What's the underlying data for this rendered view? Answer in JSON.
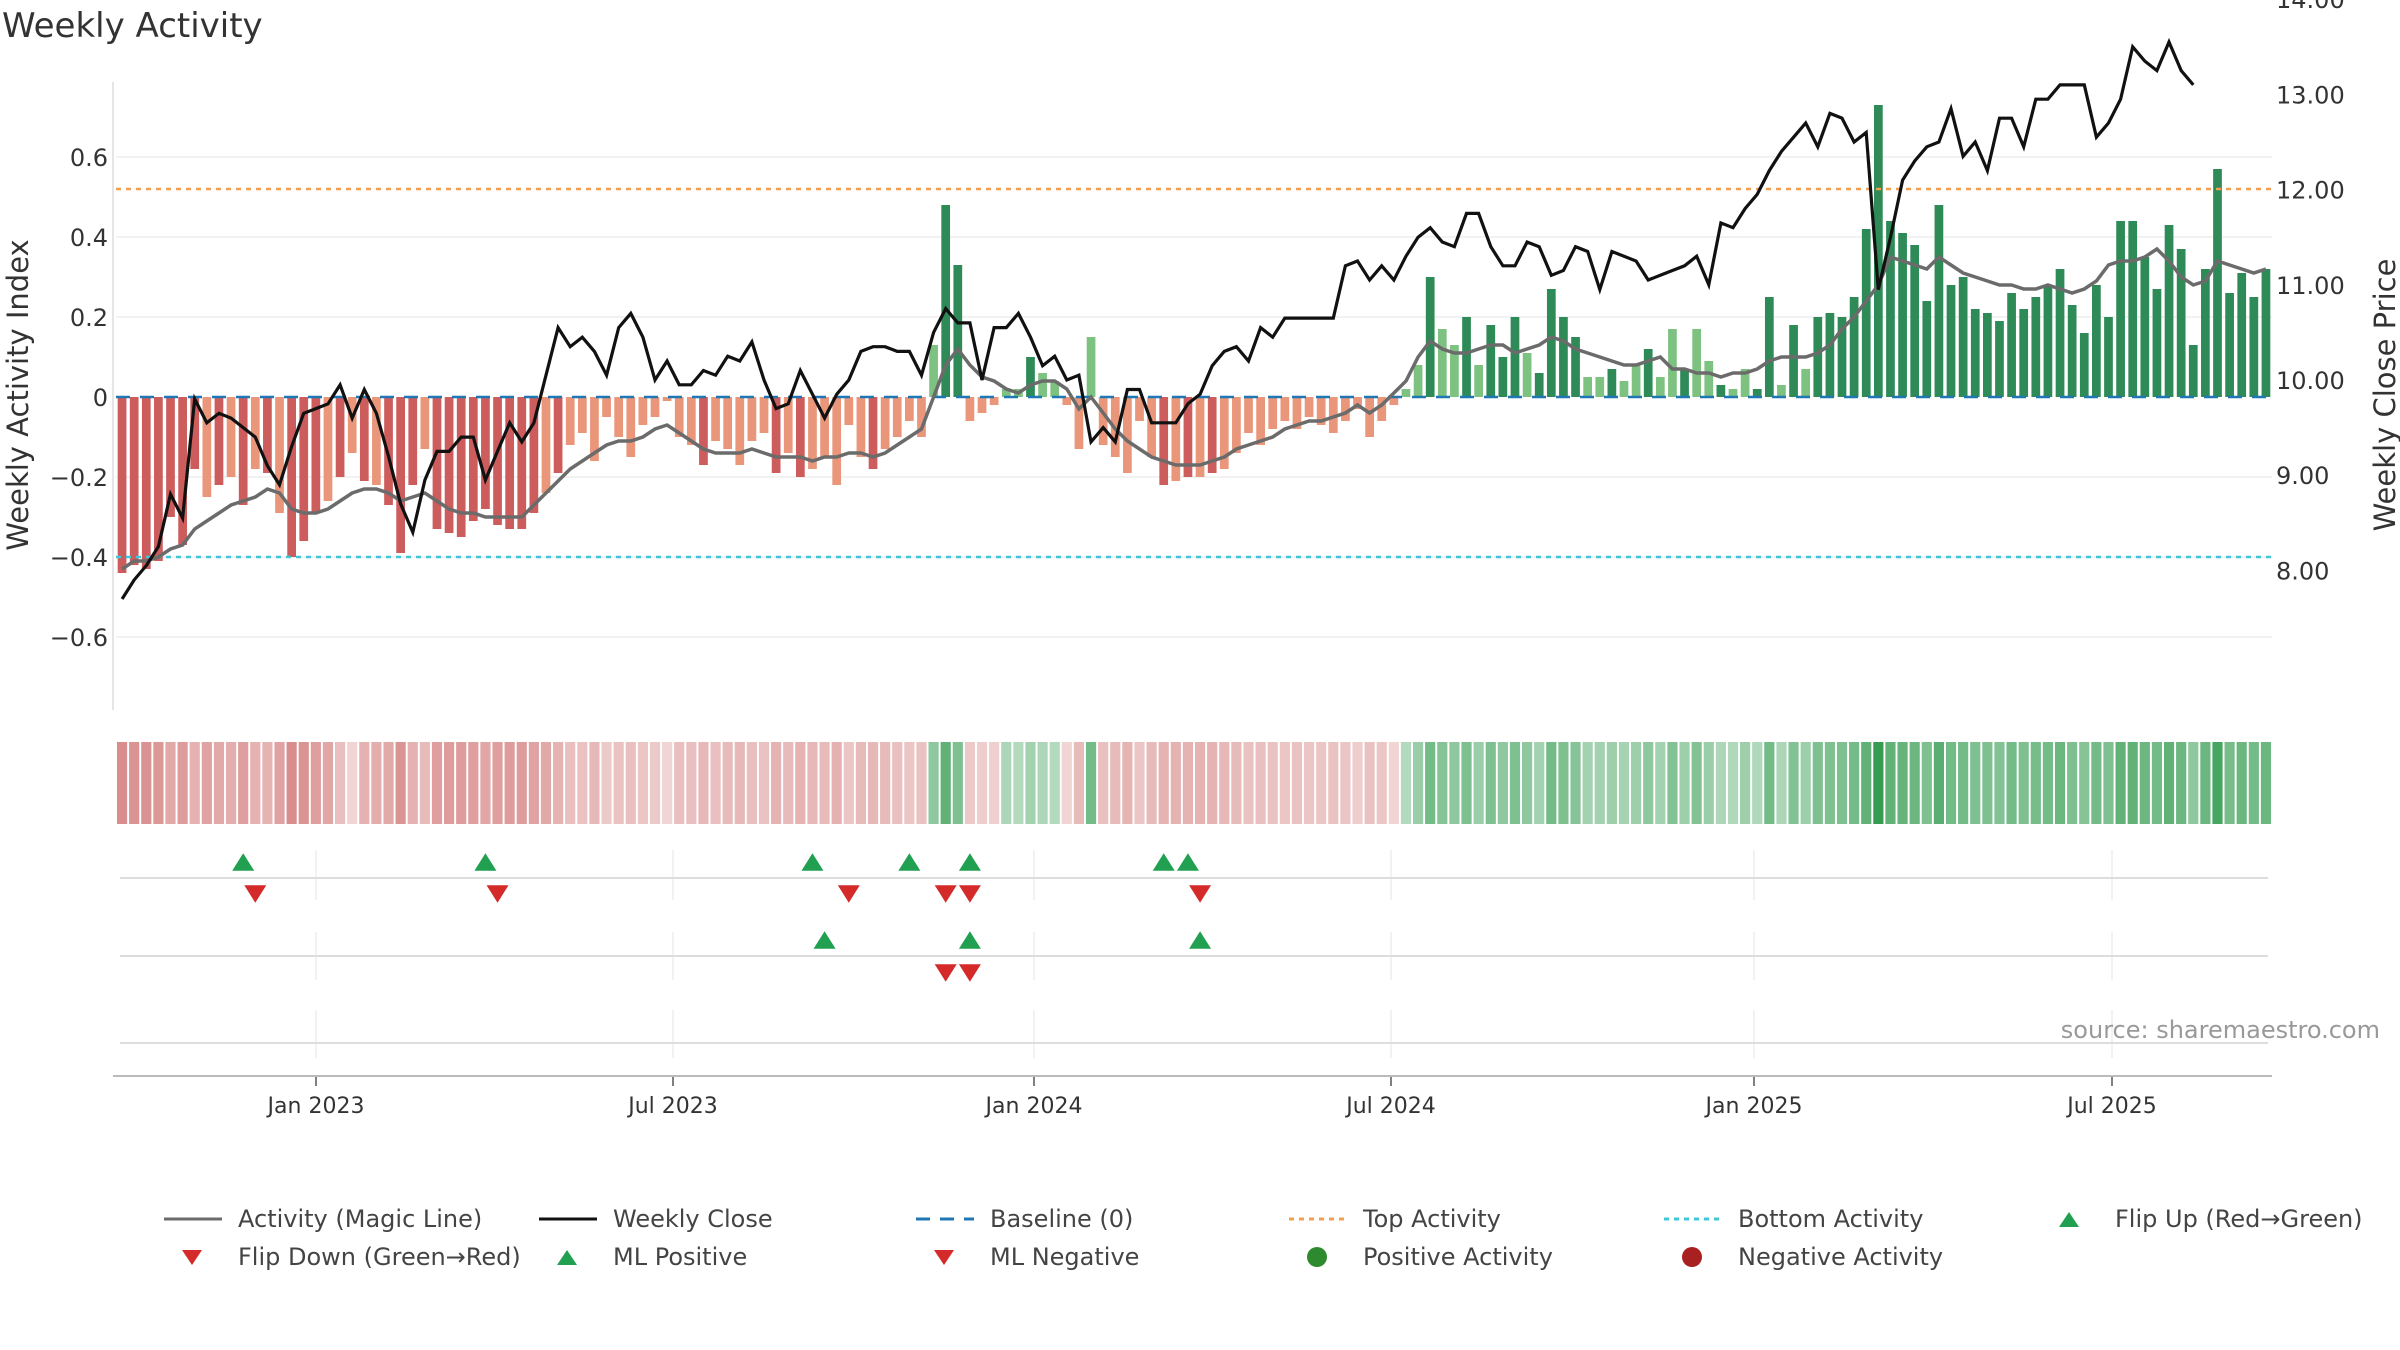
{
  "chart_data": {
    "type": "bar",
    "title": "Weekly Activity",
    "ylabel": "Weekly Activity Index",
    "y2label": "Weekly Close Price",
    "ylim": [
      -0.8,
      0.8
    ],
    "y2lim": [
      7.25,
      14.25
    ],
    "yticks": [
      "0.6",
      "0.4",
      "0.2",
      "0",
      "−0.2",
      "−0.4",
      "−0.6"
    ],
    "y2ticks": [
      "14.00",
      "13.00",
      "12.00",
      "11.00",
      "10.00",
      "9.00",
      "8.00"
    ],
    "xticks": [
      "Jan 2023",
      "Jul 2023",
      "Jan 2024",
      "Jul 2024",
      "Jan 2025",
      "Jul 2025"
    ],
    "baseline": 0,
    "top_activity": 0.52,
    "bottom_activity": -0.4,
    "source": "source: sharemaestro.com",
    "colors": {
      "pos_strong": "#2e8a57",
      "pos_light": "#7dc280",
      "neg_strong": "#cd5c5c",
      "neg_light": "#e9967a",
      "magic": "#6b6b6b",
      "close": "#111111",
      "baseline": "#1f77b4",
      "top": "#f0a050",
      "bottom": "#40c8d8",
      "up": "#20a050",
      "down": "#d42a2a"
    },
    "activity": [
      -0.44,
      -0.42,
      -0.43,
      -0.41,
      -0.3,
      -0.37,
      -0.18,
      -0.25,
      -0.22,
      -0.2,
      -0.27,
      -0.18,
      -0.19,
      -0.29,
      -0.4,
      -0.36,
      -0.29,
      -0.26,
      -0.2,
      -0.14,
      -0.21,
      -0.22,
      -0.27,
      -0.39,
      -0.22,
      -0.13,
      -0.33,
      -0.34,
      -0.35,
      -0.31,
      -0.28,
      -0.32,
      -0.33,
      -0.33,
      -0.29,
      -0.24,
      -0.19,
      -0.12,
      -0.09,
      -0.16,
      -0.05,
      -0.1,
      -0.15,
      -0.07,
      -0.05,
      -0.01,
      -0.1,
      -0.12,
      -0.17,
      -0.11,
      -0.13,
      -0.17,
      -0.11,
      -0.09,
      -0.19,
      -0.14,
      -0.2,
      -0.18,
      -0.15,
      -0.22,
      -0.07,
      -0.15,
      -0.18,
      -0.13,
      -0.1,
      -0.06,
      -0.1,
      0.13,
      0.48,
      0.33,
      -0.06,
      -0.04,
      -0.02,
      0.02,
      0.02,
      0.1,
      0.06,
      0.04,
      -0.02,
      -0.13,
      0.15,
      -0.12,
      -0.15,
      -0.19,
      -0.06,
      -0.15,
      -0.22,
      -0.21,
      -0.2,
      -0.2,
      -0.19,
      -0.18,
      -0.14,
      -0.09,
      -0.12,
      -0.08,
      -0.06,
      -0.08,
      -0.05,
      -0.07,
      -0.09,
      -0.06,
      -0.03,
      -0.1,
      -0.06,
      -0.02,
      0.02,
      0.08,
      0.3,
      0.17,
      0.13,
      0.2,
      0.08,
      0.18,
      0.1,
      0.2,
      0.11,
      0.06,
      0.27,
      0.2,
      0.15,
      0.05,
      0.05,
      0.07,
      0.04,
      0.08,
      0.12,
      0.05,
      0.17,
      0.07,
      0.17,
      0.09,
      0.03,
      0.02,
      0.07,
      0.02,
      0.25,
      0.03,
      0.18,
      0.07,
      0.2,
      0.21,
      0.2,
      0.25,
      0.42,
      0.73,
      0.44,
      0.41,
      0.38,
      0.24,
      0.48,
      0.28,
      0.3,
      0.22,
      0.21,
      0.19,
      0.26,
      0.22,
      0.25,
      0.28,
      0.32,
      0.23,
      0.16,
      0.28,
      0.2,
      0.44,
      0.44,
      0.35,
      0.27,
      0.43,
      0.37,
      0.13,
      0.32,
      0.57,
      0.26,
      0.31,
      0.25,
      0.32
    ],
    "magic_line": [
      -0.43,
      -0.41,
      -0.41,
      -0.4,
      -0.38,
      -0.37,
      -0.33,
      -0.31,
      -0.29,
      -0.27,
      -0.26,
      -0.25,
      -0.23,
      -0.24,
      -0.28,
      -0.29,
      -0.29,
      -0.28,
      -0.26,
      -0.24,
      -0.23,
      -0.23,
      -0.24,
      -0.26,
      -0.25,
      -0.24,
      -0.26,
      -0.28,
      -0.29,
      -0.29,
      -0.3,
      -0.3,
      -0.3,
      -0.3,
      -0.27,
      -0.24,
      -0.21,
      -0.18,
      -0.16,
      -0.14,
      -0.12,
      -0.11,
      -0.11,
      -0.1,
      -0.08,
      -0.07,
      -0.09,
      -0.11,
      -0.13,
      -0.14,
      -0.14,
      -0.14,
      -0.13,
      -0.14,
      -0.15,
      -0.15,
      -0.15,
      -0.16,
      -0.15,
      -0.15,
      -0.14,
      -0.14,
      -0.15,
      -0.14,
      -0.12,
      -0.1,
      -0.08,
      0.0,
      0.08,
      0.12,
      0.08,
      0.05,
      0.04,
      0.02,
      0.01,
      0.03,
      0.04,
      0.04,
      0.02,
      -0.03,
      0.0,
      -0.04,
      -0.08,
      -0.11,
      -0.13,
      -0.15,
      -0.16,
      -0.17,
      -0.17,
      -0.17,
      -0.16,
      -0.15,
      -0.13,
      -0.12,
      -0.11,
      -0.1,
      -0.08,
      -0.07,
      -0.06,
      -0.06,
      -0.05,
      -0.04,
      -0.02,
      -0.04,
      -0.02,
      0.01,
      0.04,
      0.1,
      0.14,
      0.12,
      0.11,
      0.11,
      0.12,
      0.13,
      0.13,
      0.11,
      0.12,
      0.13,
      0.15,
      0.14,
      0.12,
      0.11,
      0.1,
      0.09,
      0.08,
      0.08,
      0.09,
      0.1,
      0.07,
      0.07,
      0.06,
      0.06,
      0.05,
      0.06,
      0.06,
      0.07,
      0.09,
      0.1,
      0.1,
      0.1,
      0.11,
      0.13,
      0.17,
      0.2,
      0.24,
      0.28,
      0.35,
      0.34,
      0.33,
      0.32,
      0.35,
      0.33,
      0.31,
      0.3,
      0.29,
      0.28,
      0.28,
      0.27,
      0.27,
      0.28,
      0.27,
      0.26,
      0.27,
      0.29,
      0.33,
      0.34,
      0.34,
      0.35,
      0.37,
      0.34,
      0.3,
      0.28,
      0.29,
      0.34,
      0.33,
      0.32,
      0.31,
      0.32
    ],
    "weekly_close": [
      7.7,
      7.9,
      8.05,
      8.25,
      8.8,
      8.55,
      9.8,
      9.55,
      9.65,
      9.6,
      9.5,
      9.4,
      9.1,
      8.9,
      9.3,
      9.65,
      9.7,
      9.75,
      9.95,
      9.6,
      9.9,
      9.65,
      9.2,
      8.7,
      8.4,
      8.95,
      9.25,
      9.25,
      9.4,
      9.4,
      8.95,
      9.25,
      9.55,
      9.35,
      9.55,
      10.05,
      10.55,
      10.35,
      10.45,
      10.3,
      10.05,
      10.55,
      10.7,
      10.45,
      10.0,
      10.2,
      9.95,
      9.95,
      10.1,
      10.05,
      10.25,
      10.2,
      10.4,
      10.0,
      9.7,
      9.75,
      10.1,
      9.85,
      9.6,
      9.85,
      10.0,
      10.3,
      10.35,
      10.35,
      10.3,
      10.3,
      10.05,
      10.5,
      10.75,
      10.6,
      10.6,
      10.0,
      10.55,
      10.55,
      10.7,
      10.45,
      10.15,
      10.25,
      10.0,
      10.05,
      9.35,
      9.5,
      9.35,
      9.9,
      9.9,
      9.55,
      9.55,
      9.55,
      9.75,
      9.85,
      10.15,
      10.3,
      10.35,
      10.2,
      10.55,
      10.45,
      10.65,
      10.65,
      10.65,
      10.65,
      10.65,
      11.2,
      11.25,
      11.05,
      11.2,
      11.05,
      11.3,
      11.5,
      11.6,
      11.45,
      11.4,
      11.75,
      11.75,
      11.4,
      11.2,
      11.2,
      11.45,
      11.4,
      11.1,
      11.15,
      11.4,
      11.35,
      10.95,
      11.35,
      11.3,
      11.25,
      11.05,
      11.1,
      11.15,
      11.2,
      11.3,
      11.0,
      11.65,
      11.6,
      11.8,
      11.95,
      12.2,
      12.4,
      12.55,
      12.7,
      12.45,
      12.8,
      12.75,
      12.5,
      12.6,
      10.95,
      11.5,
      12.1,
      12.3,
      12.45,
      12.5,
      12.85,
      12.35,
      12.5,
      12.2,
      12.75,
      12.75,
      12.45,
      12.95,
      12.95,
      13.1,
      13.1,
      13.1,
      12.55,
      12.7,
      12.95,
      13.5,
      13.35,
      13.25,
      13.55,
      13.25,
      13.1
    ],
    "strip_intensity": [
      0.55,
      0.5,
      0.52,
      0.48,
      0.35,
      0.45,
      0.3,
      0.4,
      0.35,
      0.32,
      0.42,
      0.3,
      0.28,
      0.4,
      0.55,
      0.5,
      0.42,
      0.38,
      0.2,
      0.05,
      0.3,
      0.32,
      0.35,
      0.5,
      0.3,
      0.22,
      0.42,
      0.45,
      0.45,
      0.42,
      0.38,
      0.42,
      0.45,
      0.45,
      0.4,
      0.35,
      0.28,
      0.2,
      0.18,
      0.25,
      0.12,
      0.18,
      0.2,
      0.15,
      0.12,
      0.05,
      0.2,
      0.2,
      0.25,
      0.2,
      0.22,
      0.25,
      0.2,
      0.18,
      0.28,
      0.22,
      0.28,
      0.25,
      0.22,
      0.3,
      0.15,
      0.22,
      0.25,
      0.22,
      0.2,
      0.15,
      0.18,
      0.35,
      0.6,
      0.45,
      0.12,
      0.1,
      0.08,
      0.2,
      0.15,
      0.25,
      0.2,
      0.15,
      0.05,
      0.22,
      0.5,
      0.2,
      0.22,
      0.28,
      0.15,
      0.22,
      0.28,
      0.28,
      0.28,
      0.28,
      0.28,
      0.25,
      0.22,
      0.18,
      0.2,
      0.18,
      0.15,
      0.18,
      0.15,
      0.15,
      0.18,
      0.15,
      0.1,
      0.18,
      0.15,
      0.05,
      0.15,
      0.3,
      0.5,
      0.4,
      0.35,
      0.45,
      0.3,
      0.45,
      0.35,
      0.45,
      0.35,
      0.25,
      0.5,
      0.45,
      0.4,
      0.25,
      0.25,
      0.28,
      0.22,
      0.28,
      0.35,
      0.25,
      0.42,
      0.28,
      0.42,
      0.3,
      0.2,
      0.18,
      0.28,
      0.18,
      0.5,
      0.2,
      0.42,
      0.28,
      0.45,
      0.45,
      0.45,
      0.5,
      0.6,
      0.85,
      0.6,
      0.58,
      0.55,
      0.45,
      0.65,
      0.5,
      0.5,
      0.45,
      0.45,
      0.42,
      0.5,
      0.45,
      0.48,
      0.5,
      0.55,
      0.45,
      0.4,
      0.5,
      0.45,
      0.6,
      0.6,
      0.55,
      0.5,
      0.6,
      0.55,
      0.35,
      0.55,
      0.75,
      0.48,
      0.55,
      0.5,
      0.55
    ],
    "flip_up_week": [
      10,
      30,
      57,
      65,
      70,
      86,
      88
    ],
    "flip_down_week": [
      11,
      31,
      60,
      68,
      70,
      89
    ],
    "ml_positive_week": [
      58,
      70,
      89
    ],
    "ml_negative_week": [
      68,
      70
    ],
    "legend": [
      {
        "label": "Activity (Magic Line)",
        "kind": "line",
        "color": "#6b6b6b"
      },
      {
        "label": "Weekly Close",
        "kind": "line",
        "color": "#111111"
      },
      {
        "label": "Baseline (0)",
        "kind": "dash",
        "color": "#1f77b4"
      },
      {
        "label": "Top Activity",
        "kind": "dot",
        "color": "#f0a050"
      },
      {
        "label": "Bottom Activity",
        "kind": "dot",
        "color": "#40c8d8"
      },
      {
        "label": "Flip Up (Red→Green)",
        "kind": "up",
        "color": "#20a050"
      },
      {
        "label": "Flip Down (Green→Red)",
        "kind": "down",
        "color": "#d42a2a"
      },
      {
        "label": "ML Positive",
        "kind": "up",
        "color": "#20a050"
      },
      {
        "label": "ML Negative",
        "kind": "down",
        "color": "#d42a2a"
      },
      {
        "label": "Positive Activity",
        "kind": "circle",
        "color": "#2e8a2e"
      },
      {
        "label": "Negative Activity",
        "kind": "circle",
        "color": "#a82020"
      }
    ]
  }
}
